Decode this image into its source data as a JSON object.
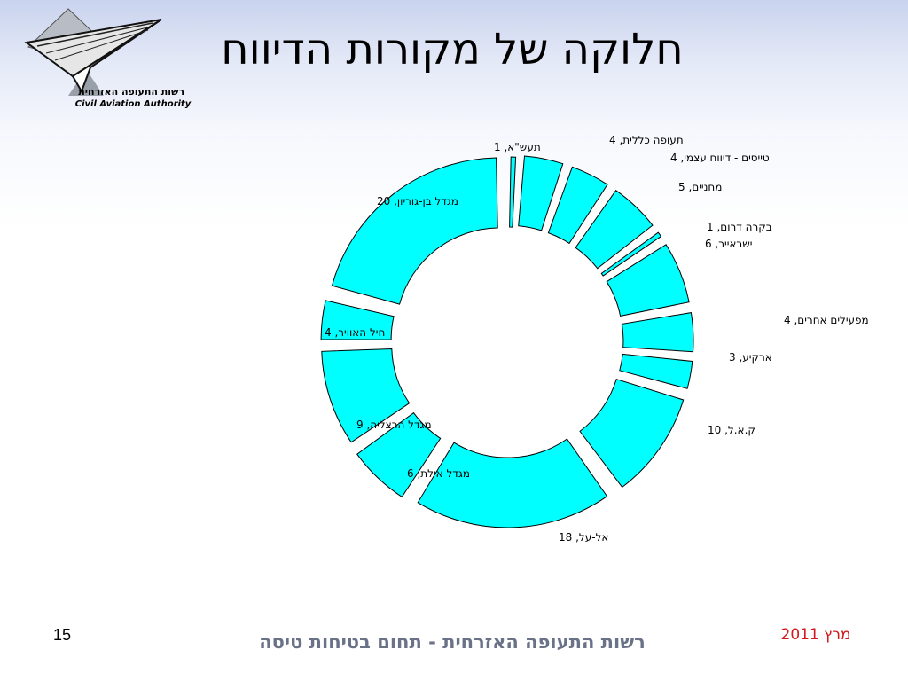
{
  "header": {
    "title": "חלוקה של מקורות הדיווח",
    "logo": {
      "text_he": "רשות התעופה האזרחית",
      "text_en": "Civil Aviation Authority",
      "icon": "paper-plane-icon"
    }
  },
  "chart_data": {
    "type": "pie",
    "style": "exploded-donut",
    "fill_color": "#00ffff",
    "stroke_color": "#000000",
    "slices": [
      {
        "label": "תעש\"א, 1",
        "name": "תעש\"א",
        "value": 1
      },
      {
        "label": "תעופה כללית, 4",
        "name": "תעופה כללית",
        "value": 4
      },
      {
        "label": "טייסים - דיווח עצמי, 4",
        "name": "טייסים - דיווח עצמי",
        "value": 4
      },
      {
        "label": "מחניים, 5",
        "name": "מחניים",
        "value": 5
      },
      {
        "label": "בקרה דרום, 1",
        "name": "בקרה דרום",
        "value": 1
      },
      {
        "label": "ישראייר, 6",
        "name": "ישראייר",
        "value": 6
      },
      {
        "label": "מפעילים אחרים, 4",
        "name": "מפעילים אחרים",
        "value": 4
      },
      {
        "label": "ארקיע, 3",
        "name": "ארקיע",
        "value": 3
      },
      {
        "label": "ק.א.ל, 10",
        "name": "ק.א.ל",
        "value": 10
      },
      {
        "label": "אל-על, 18",
        "name": "אל-על",
        "value": 18
      },
      {
        "label": "מגדל אילת, 6",
        "name": "מגדל אילת",
        "value": 6
      },
      {
        "label": "מגדל הרצליה, 9",
        "name": "מגדל הרצליה",
        "value": 9
      },
      {
        "label": "חיל האוויר, 4",
        "name": "חיל האוויר",
        "value": 4
      },
      {
        "label": "מגדל בן-גוריון, 20",
        "name": "מגדל בן-גוריון",
        "value": 20
      }
    ]
  },
  "footer": {
    "page_number": "15",
    "organization": "רשות התעופה האזרחית - תחום בטיחות טיסה",
    "date": "מרץ  2011"
  }
}
